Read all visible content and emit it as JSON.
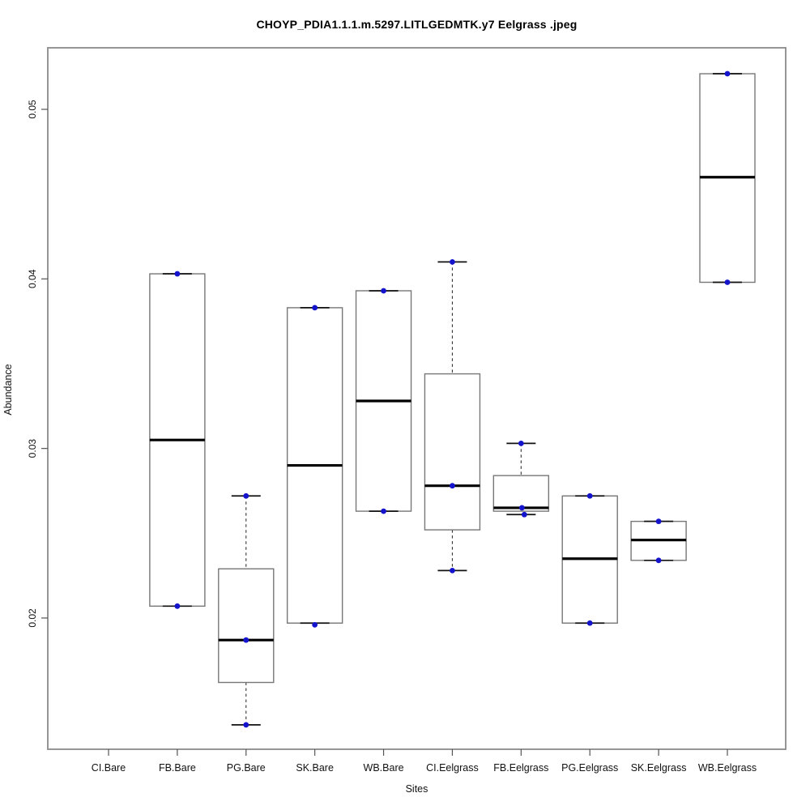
{
  "chart_data": {
    "type": "boxplot",
    "title": "CHOYP_PDIA1.1.1.m.5297.LITLGEDMTK.y7 Eelgrass .jpeg",
    "xlabel": "Sites",
    "ylabel": "Abundance",
    "ylim": [
      0.01226,
      0.05363
    ],
    "yticks": [
      "0.02",
      "0.03",
      "0.04",
      "0.05"
    ],
    "grid": false,
    "legend": "none",
    "categories": [
      "CI.Bare",
      "FB.Bare",
      "PG.Bare",
      "SK.Bare",
      "WB.Bare",
      "CI.Eelgrass",
      "FB.Eelgrass",
      "PG.Eelgrass",
      "SK.Eelgrass",
      "WB.Eelgrass"
    ],
    "colors": {
      "point": "#1414cd",
      "box_border": "#777777",
      "median": "#000000",
      "whisker_dash": "#333333",
      "whisker_cap": "#111111",
      "frame": "#8a8a8a",
      "tick": "#555555",
      "box_fill": "#ffffff"
    },
    "boxes": [
      {
        "category": "CI.Bare",
        "empty": true,
        "points": []
      },
      {
        "category": "FB.Bare",
        "empty": false,
        "low": 0.0207,
        "q1": 0.0207,
        "median": 0.0305,
        "q3": 0.0403,
        "high": 0.0403,
        "points": [
          {
            "v": 0.0403
          },
          {
            "v": 0.0207
          }
        ]
      },
      {
        "category": "PG.Bare",
        "empty": false,
        "low": 0.0137,
        "q1": 0.0162,
        "median": 0.0187,
        "q3": 0.0229,
        "high": 0.0272,
        "points": [
          {
            "v": 0.0272
          },
          {
            "v": 0.0187
          },
          {
            "v": 0.0137
          }
        ]
      },
      {
        "category": "SK.Bare",
        "empty": false,
        "low": 0.0197,
        "q1": 0.0197,
        "median": 0.029,
        "q3": 0.0383,
        "high": 0.0383,
        "points": [
          {
            "v": 0.0383
          },
          {
            "v": 0.0196
          }
        ]
      },
      {
        "category": "WB.Bare",
        "empty": false,
        "low": 0.0263,
        "q1": 0.0263,
        "median": 0.0328,
        "q3": 0.0393,
        "high": 0.0393,
        "points": [
          {
            "v": 0.0393
          },
          {
            "v": 0.0263
          }
        ]
      },
      {
        "category": "CI.Eelgrass",
        "empty": false,
        "low": 0.0228,
        "q1": 0.0252,
        "median": 0.0278,
        "q3": 0.0344,
        "high": 0.041,
        "points": [
          {
            "v": 0.041
          },
          {
            "v": 0.0278
          },
          {
            "v": 0.0228
          }
        ]
      },
      {
        "category": "FB.Eelgrass",
        "empty": false,
        "low": 0.0261,
        "q1": 0.0263,
        "median": 0.0265,
        "q3": 0.0284,
        "high": 0.0303,
        "points": [
          {
            "v": 0.0303
          },
          {
            "v": 0.0265,
            "dx": 1
          },
          {
            "v": 0.0261,
            "dx": 4
          }
        ]
      },
      {
        "category": "PG.Eelgrass",
        "empty": false,
        "low": 0.0197,
        "q1": 0.0197,
        "median": 0.0235,
        "q3": 0.0272,
        "high": 0.0272,
        "points": [
          {
            "v": 0.0272
          },
          {
            "v": 0.0197
          }
        ]
      },
      {
        "category": "SK.Eelgrass",
        "empty": false,
        "low": 0.0234,
        "q1": 0.0234,
        "median": 0.0246,
        "q3": 0.0257,
        "high": 0.0257,
        "points": [
          {
            "v": 0.0257
          },
          {
            "v": 0.0234
          }
        ]
      },
      {
        "category": "WB.Eelgrass",
        "empty": false,
        "low": 0.0398,
        "q1": 0.0398,
        "median": 0.046,
        "q3": 0.0521,
        "high": 0.0521,
        "points": [
          {
            "v": 0.0521
          },
          {
            "v": 0.0398
          }
        ]
      }
    ]
  }
}
